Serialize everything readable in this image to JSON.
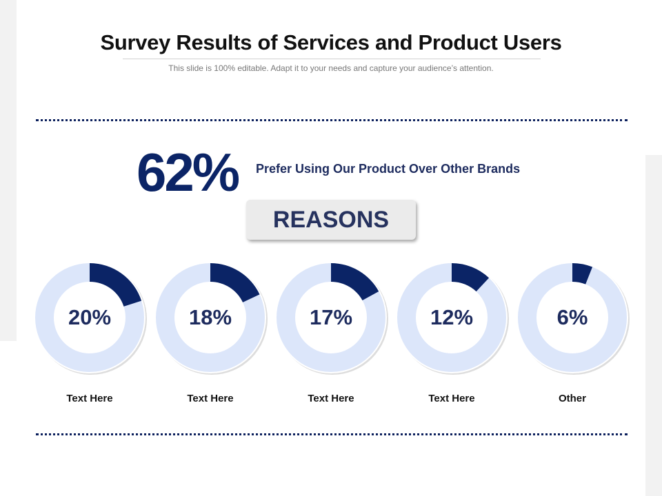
{
  "title": "Survey Results of Services and Product Users",
  "subtitle": "This slide is 100% editable. Adapt it to your needs and capture your audience’s attention.",
  "headline": {
    "value": "62%",
    "text": "Prefer Using Our Product Over Other Brands"
  },
  "reasons_label": "REASONS",
  "colors": {
    "fill": "#0b2466",
    "track": "#dce6fa",
    "text": "#1d2b5e"
  },
  "chart_data": {
    "type": "donut",
    "categories": [
      "Text Here",
      "Text Here",
      "Text Here",
      "Text Here",
      "Other"
    ],
    "values": [
      20,
      18,
      17,
      12,
      6
    ],
    "labels": [
      "20%",
      "18%",
      "17%",
      "12%",
      "6%"
    ]
  }
}
